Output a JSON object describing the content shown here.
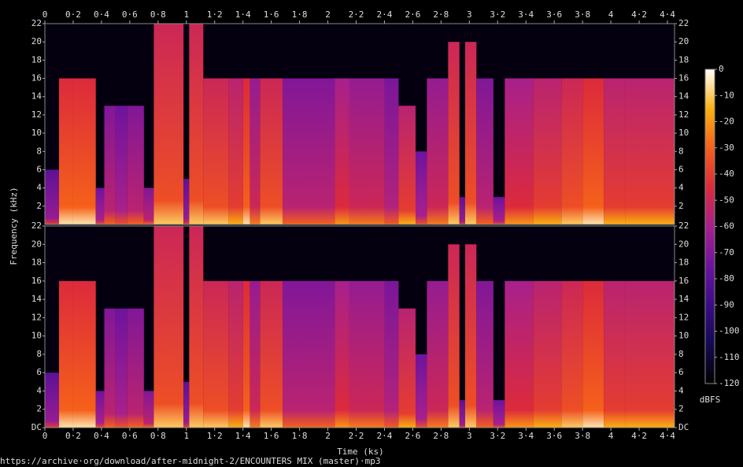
{
  "chart_data": {
    "type": "spectrogram",
    "x_label": "Time (ks)",
    "y_label": "Frequency (kHz)",
    "colorbar_label": "dBFS",
    "caption": "https://archive·org/download/after-midnight-2/ENCOUNTERS MIX (master)·mp3",
    "xlim": [
      0,
      4.45
    ],
    "xticks": [
      0,
      {
        "value": 0.2,
        "label": "0·2"
      },
      {
        "value": 0.4,
        "label": "0·4"
      },
      {
        "value": 0.6,
        "label": "0·6"
      },
      {
        "value": 0.8,
        "label": "0·8"
      },
      1,
      {
        "value": 1.2,
        "label": "1·2"
      },
      {
        "value": 1.4,
        "label": "1·4"
      },
      {
        "value": 1.6,
        "label": "1·6"
      },
      {
        "value": 1.8,
        "label": "1·8"
      },
      2,
      {
        "value": 2.2,
        "label": "2·2"
      },
      {
        "value": 2.4,
        "label": "2·4"
      },
      {
        "value": 2.6,
        "label": "2·6"
      },
      {
        "value": 2.8,
        "label": "2·8"
      },
      3,
      {
        "value": 3.2,
        "label": "3·2"
      },
      {
        "value": 3.4,
        "label": "3·4"
      },
      {
        "value": 3.6,
        "label": "3·6"
      },
      {
        "value": 3.8,
        "label": "3·8"
      },
      4,
      {
        "value": 4.2,
        "label": "4·2"
      },
      {
        "value": 4.4,
        "label": "4·4"
      }
    ],
    "ylim": [
      0,
      22
    ],
    "channels": [
      {
        "yticks": [
          2,
          4,
          6,
          8,
          10,
          12,
          14,
          16,
          18,
          20,
          22
        ]
      },
      {
        "yticks": [
          {
            "value": 0,
            "label": "DC"
          },
          2,
          4,
          6,
          8,
          10,
          12,
          14,
          16,
          18,
          20,
          22
        ]
      }
    ],
    "clim": [
      -120,
      0
    ],
    "cticks": [
      0,
      -10,
      -20,
      -30,
      -40,
      -50,
      -60,
      -70,
      -80,
      -90,
      -100,
      -110,
      -120
    ],
    "colormap": [
      "#000000",
      "#140a50",
      "#3a0c85",
      "#6e139e",
      "#a8208c",
      "#dc2a3c",
      "#f5601a",
      "#fcb010",
      "#ffffff"
    ],
    "segments": [
      {
        "start": 0,
        "end": 0.1,
        "cutoff": 6,
        "level": -80
      },
      {
        "start": 0.1,
        "end": 0.2,
        "cutoff": 16,
        "level": -45
      },
      {
        "start": 0.2,
        "end": 0.36,
        "cutoff": 16,
        "level": -45
      },
      {
        "start": 0.36,
        "end": 0.42,
        "cutoff": 4,
        "level": -75
      },
      {
        "start": 0.42,
        "end": 0.5,
        "cutoff": 13,
        "level": -70
      },
      {
        "start": 0.5,
        "end": 0.58,
        "cutoff": 13,
        "level": -75
      },
      {
        "start": 0.58,
        "end": 0.7,
        "cutoff": 13,
        "level": -70
      },
      {
        "start": 0.7,
        "end": 0.77,
        "cutoff": 4,
        "level": -70
      },
      {
        "start": 0.77,
        "end": 0.98,
        "cutoff": 22,
        "level": -50
      },
      {
        "start": 0.98,
        "end": 1.02,
        "cutoff": 5,
        "level": -80
      },
      {
        "start": 1.02,
        "end": 1.12,
        "cutoff": 22,
        "level": -50
      },
      {
        "start": 1.12,
        "end": 1.3,
        "cutoff": 16,
        "level": -50
      },
      {
        "start": 1.3,
        "end": 1.4,
        "cutoff": 16,
        "level": -55
      },
      {
        "start": 1.4,
        "end": 1.45,
        "cutoff": 16,
        "level": -45
      },
      {
        "start": 1.45,
        "end": 1.52,
        "cutoff": 16,
        "level": -65
      },
      {
        "start": 1.52,
        "end": 1.68,
        "cutoff": 16,
        "level": -50
      },
      {
        "start": 1.68,
        "end": 2.05,
        "cutoff": 16,
        "level": -70
      },
      {
        "start": 2.05,
        "end": 2.15,
        "cutoff": 16,
        "level": -60
      },
      {
        "start": 2.15,
        "end": 2.4,
        "cutoff": 16,
        "level": -65
      },
      {
        "start": 2.4,
        "end": 2.5,
        "cutoff": 16,
        "level": -72
      },
      {
        "start": 2.5,
        "end": 2.62,
        "cutoff": 13,
        "level": -55
      },
      {
        "start": 2.62,
        "end": 2.7,
        "cutoff": 8,
        "level": -75
      },
      {
        "start": 2.7,
        "end": 2.85,
        "cutoff": 16,
        "level": -65
      },
      {
        "start": 2.85,
        "end": 2.93,
        "cutoff": 20,
        "level": -50
      },
      {
        "start": 2.93,
        "end": 2.97,
        "cutoff": 3,
        "level": -80
      },
      {
        "start": 2.97,
        "end": 3.05,
        "cutoff": 20,
        "level": -50
      },
      {
        "start": 3.05,
        "end": 3.17,
        "cutoff": 16,
        "level": -70
      },
      {
        "start": 3.17,
        "end": 3.25,
        "cutoff": 3,
        "level": -75
      },
      {
        "start": 3.25,
        "end": 3.45,
        "cutoff": 16,
        "level": -60
      },
      {
        "start": 3.45,
        "end": 3.65,
        "cutoff": 16,
        "level": -55
      },
      {
        "start": 3.65,
        "end": 3.8,
        "cutoff": 16,
        "level": -50
      },
      {
        "start": 3.8,
        "end": 3.95,
        "cutoff": 16,
        "level": -45
      },
      {
        "start": 3.95,
        "end": 4.1,
        "cutoff": 16,
        "level": -55
      },
      {
        "start": 4.1,
        "end": 4.45,
        "cutoff": 16,
        "level": -55
      }
    ]
  }
}
